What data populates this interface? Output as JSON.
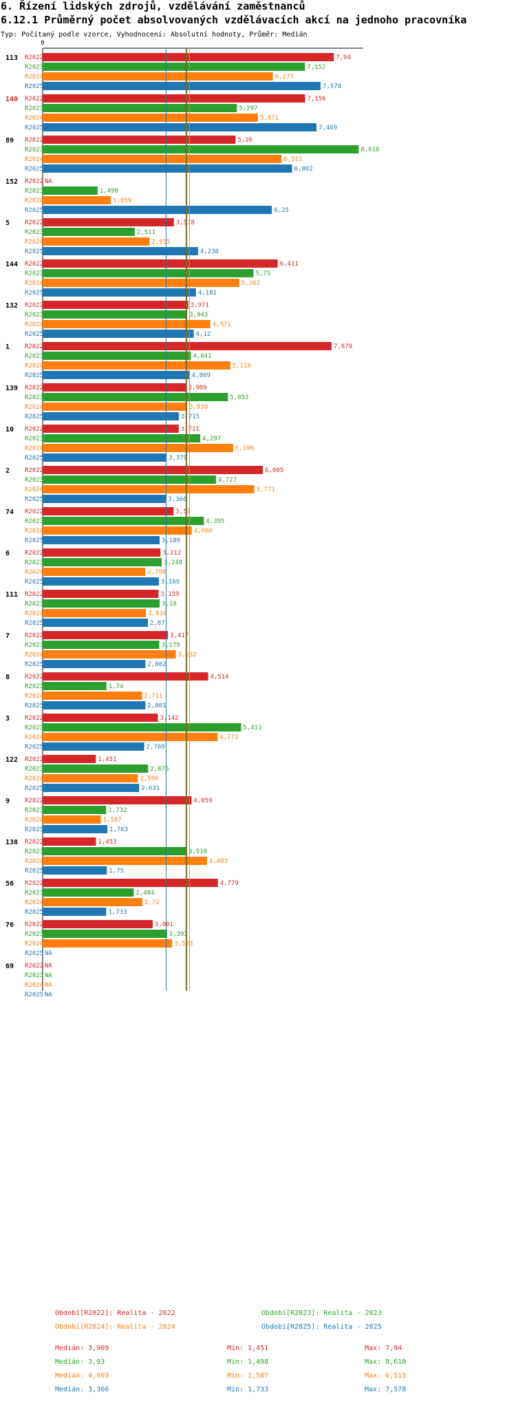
{
  "header": {
    "section_title": "6. Řízení lidských zdrojů, vzdělávání zaměstnanců",
    "chart_title": "6.12.1 Průměrný počet absolvovaných vzdělávacích akcí na jednoho pracovníka",
    "subtitle": "Typ: Počítaný podle vzorce, Vyhodnocení: Absolutní hodnoty, Průměr: Medián"
  },
  "colors": {
    "R2022": "#d62728",
    "R2023": "#2ca02c",
    "R2024": "#ff7f0e",
    "R2025": "#1f77b4",
    "axis": "#000000",
    "highlight_id": "#d62728"
  },
  "chart_data": {
    "type": "bar",
    "orientation": "horizontal",
    "title": "6.12.1 Průměrný počet absolvovaných vzdělávacích akcí na jednoho pracovníka",
    "x_axis_zero_label": "0",
    "xlim": [
      0,
      8.618
    ],
    "na_label": "NA",
    "series_names": [
      "R2022",
      "R2023",
      "R2024",
      "R2025"
    ],
    "median_lines": [
      {
        "series": "R2022",
        "value": 3.909
      },
      {
        "series": "R2023",
        "value": 3.93
      },
      {
        "series": "R2024",
        "value": 4.003
      },
      {
        "series": "R2025",
        "value": 3.366
      }
    ],
    "groups": [
      {
        "id": "113",
        "highlight": false,
        "values": [
          7.94,
          7.152,
          6.277,
          7.578
        ],
        "labels": [
          "7,94",
          "7,152",
          "6,277",
          "7,578"
        ]
      },
      {
        "id": "140",
        "highlight": true,
        "values": [
          7.156,
          5.297,
          5.871,
          7.469
        ],
        "labels": [
          "7,156",
          "5,297",
          "5,871",
          "7,469"
        ]
      },
      {
        "id": "89",
        "highlight": false,
        "values": [
          5.26,
          8.618,
          6.513,
          6.802
        ],
        "labels": [
          "5,26",
          "8,618",
          "6,513",
          "6,802"
        ]
      },
      {
        "id": "152",
        "highlight": false,
        "values": [
          null,
          1.498,
          1.859,
          6.25
        ],
        "labels": [
          "NA",
          "1,498",
          "1,859",
          "6,25"
        ]
      },
      {
        "id": "5",
        "highlight": false,
        "values": [
          3.578,
          2.511,
          2.915,
          4.238
        ],
        "labels": [
          "3,578",
          "2,511",
          "2,915",
          "4,238"
        ]
      },
      {
        "id": "144",
        "highlight": false,
        "values": [
          6.411,
          5.75,
          5.362,
          4.181
        ],
        "labels": [
          "6,411",
          "5,75",
          "5,362",
          "4,181"
        ]
      },
      {
        "id": "132",
        "highlight": false,
        "values": [
          3.971,
          3.943,
          4.571,
          4.12
        ],
        "labels": [
          "3,971",
          "3,943",
          "4,571",
          "4,12"
        ]
      },
      {
        "id": "1",
        "highlight": false,
        "values": [
          7.879,
          4.041,
          5.118,
          4.009
        ],
        "labels": [
          "7,879",
          "4,041",
          "5,118",
          "4,009"
        ]
      },
      {
        "id": "139",
        "highlight": false,
        "values": [
          3.909,
          5.053,
          3.939,
          3.715
        ],
        "labels": [
          "3,909",
          "5,053",
          "3,939",
          "3,715"
        ]
      },
      {
        "id": "10",
        "highlight": false,
        "values": [
          3.711,
          4.297,
          5.196,
          3.379
        ],
        "labels": [
          "3,711",
          "4,297",
          "5,196",
          "3,379"
        ]
      },
      {
        "id": "2",
        "highlight": false,
        "values": [
          6.005,
          4.727,
          5.771,
          3.366
        ],
        "labels": [
          "6,005",
          "4,727",
          "5,771",
          "3,366"
        ]
      },
      {
        "id": "74",
        "highlight": false,
        "values": [
          3.57,
          4.395,
          4.066,
          3.189
        ],
        "labels": [
          "3,57",
          "4,395",
          "4,066",
          "3,189"
        ]
      },
      {
        "id": "6",
        "highlight": false,
        "values": [
          3.212,
          3.248,
          2.798,
          3.169
        ],
        "labels": [
          "3,212",
          "3,248",
          "2,798",
          "3,169"
        ]
      },
      {
        "id": "111",
        "highlight": false,
        "values": [
          3.159,
          3.19,
          2.816,
          2.87
        ],
        "labels": [
          "3,159",
          "3,19",
          "2,816",
          "2,87"
        ]
      },
      {
        "id": "7",
        "highlight": false,
        "values": [
          3.417,
          3.179,
          3.632,
          2.802
        ],
        "labels": [
          "3,417",
          "3,179",
          "3,632",
          "2,802"
        ]
      },
      {
        "id": "8",
        "highlight": false,
        "values": [
          4.514,
          1.74,
          2.711,
          2.801
        ],
        "labels": [
          "4,514",
          "1,74",
          "2,711",
          "2,801"
        ]
      },
      {
        "id": "3",
        "highlight": false,
        "values": [
          3.142,
          5.411,
          4.772,
          2.769
        ],
        "labels": [
          "3,142",
          "5,411",
          "4,772",
          "2,769"
        ]
      },
      {
        "id": "122",
        "highlight": false,
        "values": [
          1.451,
          2.876,
          2.596,
          2.631
        ],
        "labels": [
          "1,451",
          "2,876",
          "2,596",
          "2,631"
        ]
      },
      {
        "id": "9",
        "highlight": false,
        "values": [
          4.059,
          1.732,
          1.587,
          1.763
        ],
        "labels": [
          "4,059",
          "1,732",
          "1,587",
          "1,763"
        ]
      },
      {
        "id": "138",
        "highlight": false,
        "values": [
          1.453,
          3.918,
          4.483,
          1.75
        ],
        "labels": [
          "1,453",
          "3,918",
          "4,483",
          "1,75"
        ]
      },
      {
        "id": "56",
        "highlight": false,
        "values": [
          4.779,
          2.484,
          2.72,
          1.733
        ],
        "labels": [
          "4,779",
          "2,484",
          "2,72",
          "1,733"
        ]
      },
      {
        "id": "76",
        "highlight": false,
        "values": [
          3.001,
          3.392,
          3.533,
          null
        ],
        "labels": [
          "3,001",
          "3,392",
          "3,533",
          "NA"
        ]
      },
      {
        "id": "69",
        "highlight": false,
        "values": [
          null,
          null,
          null,
          null
        ],
        "labels": [
          "NA",
          "NA",
          "NA",
          "NA"
        ]
      }
    ]
  },
  "legend": {
    "R2022": "Období[R2022]: Realita - 2022",
    "R2023": "Období[R2023]: Realita - 2023",
    "R2024": "Období[R2024]: Realita - 2024",
    "R2025": "Období[R2025]: Realita - 2025"
  },
  "stats": {
    "R2022": {
      "median": "Medián: 3,909",
      "min": "Min: 1,451",
      "max": "Max: 7,94"
    },
    "R2023": {
      "median": "Medián: 3,93",
      "min": "Min: 1,498",
      "max": "Max: 8,618"
    },
    "R2024": {
      "median": "Medián: 4,003",
      "min": "Min: 1,587",
      "max": "Max: 6,513"
    },
    "R2025": {
      "median": "Medián: 3,366",
      "min": "Min: 1,733",
      "max": "Max: 7,578"
    }
  }
}
